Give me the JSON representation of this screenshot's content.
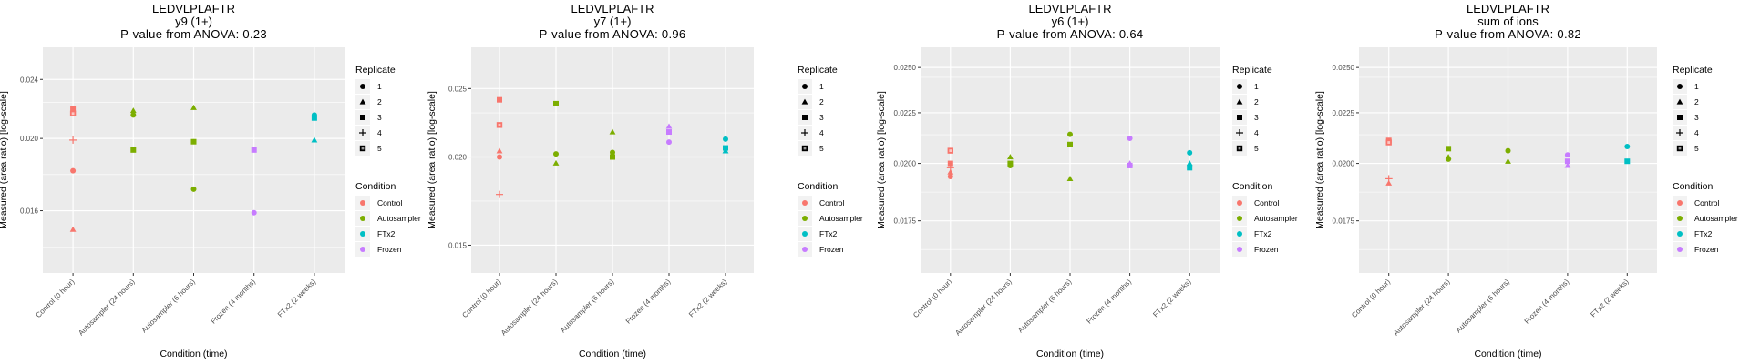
{
  "colors": {
    "Control": "#F8766D",
    "Autosampler": "#7CAE00",
    "FTx2": "#00BFC4",
    "Frozen": "#C77CFF",
    "panel_bg": "#EBEBEB",
    "grid": "#FFFFFF"
  },
  "legend": {
    "replicate_title": "Replicate",
    "replicates": [
      {
        "label": "1",
        "shape": "circle"
      },
      {
        "label": "2",
        "shape": "triangle"
      },
      {
        "label": "3",
        "shape": "square"
      },
      {
        "label": "4",
        "shape": "plus"
      },
      {
        "label": "5",
        "shape": "boxed-x"
      }
    ],
    "condition_title": "Condition",
    "conditions": [
      "Control",
      "Autosampler",
      "FTx2",
      "Frozen"
    ]
  },
  "chart_data": [
    {
      "type": "scatter",
      "title": "LEDVLPLAFTR",
      "subtitle": "y9 (1+)",
      "pvalue_label": "P-value from ANOVA: 0.23",
      "xlabel": "Condition (time)",
      "ylabel": "Measured (area ratio) [log-scale]",
      "yscale": "log",
      "categories": [
        "Control (0 hour)",
        "Autosampler (24 hours)",
        "Autosampler (6 hours)",
        "Frozen (4 months)",
        "FTx2 (2 weeks)"
      ],
      "yticks": [
        "0.016",
        "0.020",
        "0.024"
      ],
      "ylim": [
        0.0132,
        0.0265
      ],
      "points": [
        {
          "x": 0,
          "cond": "Control",
          "rep": 3,
          "y": 0.0219
        },
        {
          "x": 0,
          "cond": "Control",
          "rep": 5,
          "y": 0.0216
        },
        {
          "x": 0,
          "cond": "Control",
          "rep": 4,
          "y": 0.0199
        },
        {
          "x": 0,
          "cond": "Control",
          "rep": 1,
          "y": 0.0181
        },
        {
          "x": 0,
          "cond": "Control",
          "rep": 2,
          "y": 0.0151
        },
        {
          "x": 1,
          "cond": "Autosampler",
          "rep": 2,
          "y": 0.0218
        },
        {
          "x": 1,
          "cond": "Autosampler",
          "rep": 1,
          "y": 0.0215
        },
        {
          "x": 1,
          "cond": "Autosampler",
          "rep": 3,
          "y": 0.0193
        },
        {
          "x": 2,
          "cond": "Autosampler",
          "rep": 2,
          "y": 0.022
        },
        {
          "x": 2,
          "cond": "Autosampler",
          "rep": 3,
          "y": 0.0198
        },
        {
          "x": 2,
          "cond": "Autosampler",
          "rep": 1,
          "y": 0.0171
        },
        {
          "x": 3,
          "cond": "Frozen",
          "rep": 3,
          "y": 0.0193
        },
        {
          "x": 3,
          "cond": "Frozen",
          "rep": 1,
          "y": 0.0159
        },
        {
          "x": 4,
          "cond": "FTx2",
          "rep": 3,
          "y": 0.0213
        },
        {
          "x": 4,
          "cond": "FTx2",
          "rep": 1,
          "y": 0.0215
        },
        {
          "x": 4,
          "cond": "FTx2",
          "rep": 2,
          "y": 0.0199
        }
      ]
    },
    {
      "type": "scatter",
      "title": "LEDVLPLAFTR",
      "subtitle": "y7 (1+)",
      "pvalue_label": "P-value from ANOVA: 0.96",
      "xlabel": "Condition (time)",
      "ylabel": "Measured (area ratio) [log-scale]",
      "yscale": "log",
      "categories": [
        "Control (0 hour)",
        "Autosampler (24 hours)",
        "Autosampler (6 hours)",
        "Frozen (4 months)",
        "FTx2 (2 weeks)"
      ],
      "yticks": [
        "0.015",
        "0.020",
        "0.025"
      ],
      "ylim": [
        0.0137,
        0.0286
      ],
      "points": [
        {
          "x": 0,
          "cond": "Control",
          "rep": 3,
          "y": 0.0241
        },
        {
          "x": 0,
          "cond": "Control",
          "rep": 5,
          "y": 0.0222
        },
        {
          "x": 0,
          "cond": "Control",
          "rep": 2,
          "y": 0.0204
        },
        {
          "x": 0,
          "cond": "Control",
          "rep": 1,
          "y": 0.02
        },
        {
          "x": 0,
          "cond": "Control",
          "rep": 4,
          "y": 0.0177
        },
        {
          "x": 1,
          "cond": "Autosampler",
          "rep": 3,
          "y": 0.0238
        },
        {
          "x": 1,
          "cond": "Autosampler",
          "rep": 1,
          "y": 0.0202
        },
        {
          "x": 1,
          "cond": "Autosampler",
          "rep": 2,
          "y": 0.0196
        },
        {
          "x": 2,
          "cond": "Autosampler",
          "rep": 2,
          "y": 0.0217
        },
        {
          "x": 2,
          "cond": "Autosampler",
          "rep": 1,
          "y": 0.0203
        },
        {
          "x": 2,
          "cond": "Autosampler",
          "rep": 3,
          "y": 0.02
        },
        {
          "x": 3,
          "cond": "Frozen",
          "rep": 2,
          "y": 0.0221
        },
        {
          "x": 3,
          "cond": "Frozen",
          "rep": 3,
          "y": 0.0217
        },
        {
          "x": 3,
          "cond": "Frozen",
          "rep": 1,
          "y": 0.021
        },
        {
          "x": 4,
          "cond": "FTx2",
          "rep": 1,
          "y": 0.0212
        },
        {
          "x": 4,
          "cond": "FTx2",
          "rep": 3,
          "y": 0.0206
        },
        {
          "x": 4,
          "cond": "FTx2",
          "rep": 2,
          "y": 0.0204
        }
      ]
    },
    {
      "type": "scatter",
      "title": "LEDVLPLAFTR",
      "subtitle": "y6 (1+)",
      "pvalue_label": "P-value from ANOVA: 0.64",
      "xlabel": "Condition (time)",
      "ylabel": "Measured (area ratio) [log-scale]",
      "yscale": "log",
      "categories": [
        "Control (0 hour)",
        "Autosampler (24 hours)",
        "Autosampler (6 hours)",
        "Frozen (4 months)",
        "FTx2 (2 weeks)"
      ],
      "yticks": [
        "0.0175",
        "0.0200",
        "0.0225",
        "0.0250"
      ],
      "ylim": [
        0.0155,
        0.0262
      ],
      "points": [
        {
          "x": 0,
          "cond": "Control",
          "rep": 5,
          "y": 0.0206
        },
        {
          "x": 0,
          "cond": "Control",
          "rep": 3,
          "y": 0.02
        },
        {
          "x": 0,
          "cond": "Control",
          "rep": 4,
          "y": 0.0198
        },
        {
          "x": 0,
          "cond": "Control",
          "rep": 2,
          "y": 0.0196
        },
        {
          "x": 0,
          "cond": "Control",
          "rep": 1,
          "y": 0.0194
        },
        {
          "x": 1,
          "cond": "Autosampler",
          "rep": 2,
          "y": 0.0203
        },
        {
          "x": 1,
          "cond": "Autosampler",
          "rep": 3,
          "y": 0.02
        },
        {
          "x": 1,
          "cond": "Autosampler",
          "rep": 1,
          "y": 0.0199
        },
        {
          "x": 2,
          "cond": "Autosampler",
          "rep": 1,
          "y": 0.0214
        },
        {
          "x": 2,
          "cond": "Autosampler",
          "rep": 3,
          "y": 0.0209
        },
        {
          "x": 2,
          "cond": "Autosampler",
          "rep": 2,
          "y": 0.0193
        },
        {
          "x": 3,
          "cond": "Frozen",
          "rep": 1,
          "y": 0.0212
        },
        {
          "x": 3,
          "cond": "Frozen",
          "rep": 2,
          "y": 0.02
        },
        {
          "x": 3,
          "cond": "Frozen",
          "rep": 3,
          "y": 0.0199
        },
        {
          "x": 4,
          "cond": "FTx2",
          "rep": 1,
          "y": 0.0205
        },
        {
          "x": 4,
          "cond": "FTx2",
          "rep": 2,
          "y": 0.02
        },
        {
          "x": 4,
          "cond": "FTx2",
          "rep": 3,
          "y": 0.0198
        }
      ]
    },
    {
      "type": "scatter",
      "title": "LEDVLPLAFTR",
      "subtitle": "sum of ions",
      "pvalue_label": "P-value from ANOVA: 0.82",
      "xlabel": "Condition (time)",
      "ylabel": "Measured (area ratio) [log-scale]",
      "yscale": "log",
      "categories": [
        "Control (0 hour)",
        "Autosampler (24 hours)",
        "Autosampler (6 hours)",
        "Frozen (4 months)",
        "FTx2 (2 weeks)"
      ],
      "yticks": [
        "0.0175",
        "0.0200",
        "0.0225",
        "0.0250"
      ],
      "ylim": [
        0.0155,
        0.0262
      ],
      "points": [
        {
          "x": 0,
          "cond": "Control",
          "rep": 3,
          "y": 0.0211
        },
        {
          "x": 0,
          "cond": "Control",
          "rep": 5,
          "y": 0.021
        },
        {
          "x": 0,
          "cond": "Control",
          "rep": 4,
          "y": 0.0193
        },
        {
          "x": 0,
          "cond": "Control",
          "rep": 2,
          "y": 0.0191
        },
        {
          "x": 1,
          "cond": "Autosampler",
          "rep": 3,
          "y": 0.0207
        },
        {
          "x": 1,
          "cond": "Autosampler",
          "rep": 2,
          "y": 0.0203
        },
        {
          "x": 1,
          "cond": "Autosampler",
          "rep": 1,
          "y": 0.0202
        },
        {
          "x": 2,
          "cond": "Autosampler",
          "rep": 1,
          "y": 0.0206
        },
        {
          "x": 2,
          "cond": "Autosampler",
          "rep": 2,
          "y": 0.0201
        },
        {
          "x": 3,
          "cond": "Frozen",
          "rep": 1,
          "y": 0.0204
        },
        {
          "x": 3,
          "cond": "Frozen",
          "rep": 3,
          "y": 0.0201
        },
        {
          "x": 3,
          "cond": "Frozen",
          "rep": 2,
          "y": 0.0199
        },
        {
          "x": 4,
          "cond": "FTx2",
          "rep": 1,
          "y": 0.0208
        },
        {
          "x": 4,
          "cond": "FTx2",
          "rep": 3,
          "y": 0.0201
        }
      ]
    }
  ]
}
